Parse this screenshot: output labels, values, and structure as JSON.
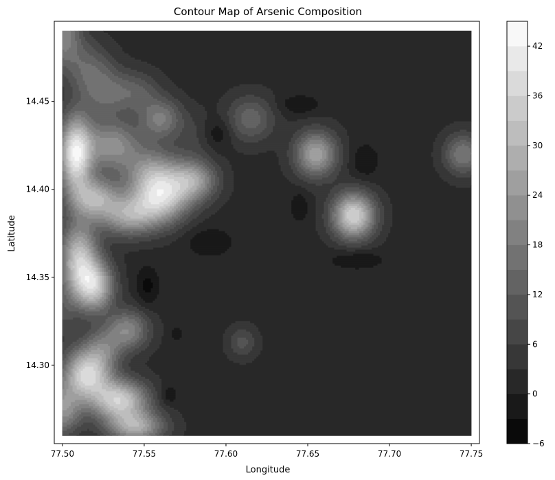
{
  "chart_data": {
    "type": "contour",
    "title": "Contour Map of Arsenic Composition",
    "xlabel": "Longitude",
    "ylabel": "Latitude",
    "xlim": [
      77.495,
      77.755
    ],
    "ylim": [
      14.2555,
      14.4955
    ],
    "data_extent": {
      "x": [
        77.5,
        77.75
      ],
      "y": [
        14.26,
        14.49
      ]
    },
    "x_ticks": [
      77.5,
      77.55,
      77.6,
      77.65,
      77.7,
      77.75
    ],
    "x_tick_labels": [
      "77.50",
      "77.55",
      "77.60",
      "77.65",
      "77.70",
      "77.75"
    ],
    "y_ticks": [
      14.3,
      14.35,
      14.4,
      14.45
    ],
    "y_tick_labels": [
      "14.30",
      "14.35",
      "14.40",
      "14.45"
    ],
    "colorbar": {
      "levels": [
        -6,
        -3,
        0,
        3,
        6,
        9,
        12,
        15,
        18,
        21,
        24,
        27,
        30,
        33,
        36,
        39,
        42,
        45
      ],
      "tick_values": [
        -6,
        0,
        6,
        12,
        18,
        24,
        30,
        36,
        42
      ],
      "tick_labels": [
        "−6",
        "0",
        "6",
        "12",
        "18",
        "24",
        "30",
        "36",
        "42"
      ],
      "colormap": "gray"
    },
    "background_value": 2,
    "features": [
      {
        "x": 77.5,
        "y": 14.488,
        "value": 20,
        "sx": 0.008,
        "sy": 0.012
      },
      {
        "x": 77.515,
        "y": 14.47,
        "value": 12,
        "sx": 0.01,
        "sy": 0.01
      },
      {
        "x": 77.525,
        "y": 14.455,
        "value": 14,
        "sx": 0.01,
        "sy": 0.01
      },
      {
        "x": 77.545,
        "y": 14.455,
        "value": 12,
        "sx": 0.01,
        "sy": 0.008
      },
      {
        "x": 77.56,
        "y": 14.44,
        "value": 18,
        "sx": 0.009,
        "sy": 0.008
      },
      {
        "x": 77.508,
        "y": 14.42,
        "value": 40,
        "sx": 0.007,
        "sy": 0.015
      },
      {
        "x": 77.53,
        "y": 14.425,
        "value": 22,
        "sx": 0.012,
        "sy": 0.01
      },
      {
        "x": 77.555,
        "y": 14.41,
        "value": 20,
        "sx": 0.012,
        "sy": 0.01
      },
      {
        "x": 77.56,
        "y": 14.395,
        "value": 32,
        "sx": 0.012,
        "sy": 0.01
      },
      {
        "x": 77.58,
        "y": 14.405,
        "value": 24,
        "sx": 0.01,
        "sy": 0.008
      },
      {
        "x": 77.54,
        "y": 14.385,
        "value": 24,
        "sx": 0.012,
        "sy": 0.008
      },
      {
        "x": 77.52,
        "y": 14.395,
        "value": 26,
        "sx": 0.01,
        "sy": 0.008
      },
      {
        "x": 77.51,
        "y": 14.36,
        "value": 32,
        "sx": 0.008,
        "sy": 0.015
      },
      {
        "x": 77.52,
        "y": 14.345,
        "value": 30,
        "sx": 0.008,
        "sy": 0.01
      },
      {
        "x": 77.5,
        "y": 14.33,
        "value": 8,
        "sx": 0.006,
        "sy": 0.01
      },
      {
        "x": 77.54,
        "y": 14.32,
        "value": 20,
        "sx": 0.009,
        "sy": 0.008
      },
      {
        "x": 77.525,
        "y": 14.31,
        "value": 14,
        "sx": 0.008,
        "sy": 0.008
      },
      {
        "x": 77.515,
        "y": 14.295,
        "value": 36,
        "sx": 0.01,
        "sy": 0.01
      },
      {
        "x": 77.535,
        "y": 14.28,
        "value": 34,
        "sx": 0.012,
        "sy": 0.008
      },
      {
        "x": 77.545,
        "y": 14.265,
        "value": 26,
        "sx": 0.012,
        "sy": 0.006
      },
      {
        "x": 77.5,
        "y": 14.275,
        "value": 22,
        "sx": 0.008,
        "sy": 0.01
      },
      {
        "x": 77.615,
        "y": 14.44,
        "value": 14,
        "sx": 0.01,
        "sy": 0.009
      },
      {
        "x": 77.655,
        "y": 14.42,
        "value": 26,
        "sx": 0.009,
        "sy": 0.009
      },
      {
        "x": 77.678,
        "y": 14.385,
        "value": 36,
        "sx": 0.009,
        "sy": 0.009
      },
      {
        "x": 77.745,
        "y": 14.42,
        "value": 18,
        "sx": 0.008,
        "sy": 0.008
      },
      {
        "x": 77.61,
        "y": 14.313,
        "value": 10,
        "sx": 0.006,
        "sy": 0.006
      },
      {
        "x": 77.58,
        "y": 14.43,
        "value": 6,
        "sx": 0.008,
        "sy": 0.01
      },
      {
        "x": 77.552,
        "y": 14.345,
        "value": -4,
        "sx": 0.005,
        "sy": 0.008
      },
      {
        "x": 77.59,
        "y": 14.37,
        "value": -3,
        "sx": 0.01,
        "sy": 0.006
      },
      {
        "x": 77.595,
        "y": 14.432,
        "value": -3,
        "sx": 0.006,
        "sy": 0.006
      },
      {
        "x": 77.645,
        "y": 14.448,
        "value": -3,
        "sx": 0.009,
        "sy": 0.004
      },
      {
        "x": 77.685,
        "y": 14.416,
        "value": -3,
        "sx": 0.006,
        "sy": 0.007
      },
      {
        "x": 77.68,
        "y": 14.36,
        "value": -3,
        "sx": 0.012,
        "sy": 0.004
      },
      {
        "x": 77.645,
        "y": 14.39,
        "value": -3,
        "sx": 0.004,
        "sy": 0.006
      },
      {
        "x": 77.565,
        "y": 14.283,
        "value": -3,
        "sx": 0.004,
        "sy": 0.004
      },
      {
        "x": 77.57,
        "y": 14.318,
        "value": -2,
        "sx": 0.003,
        "sy": 0.003
      }
    ]
  }
}
